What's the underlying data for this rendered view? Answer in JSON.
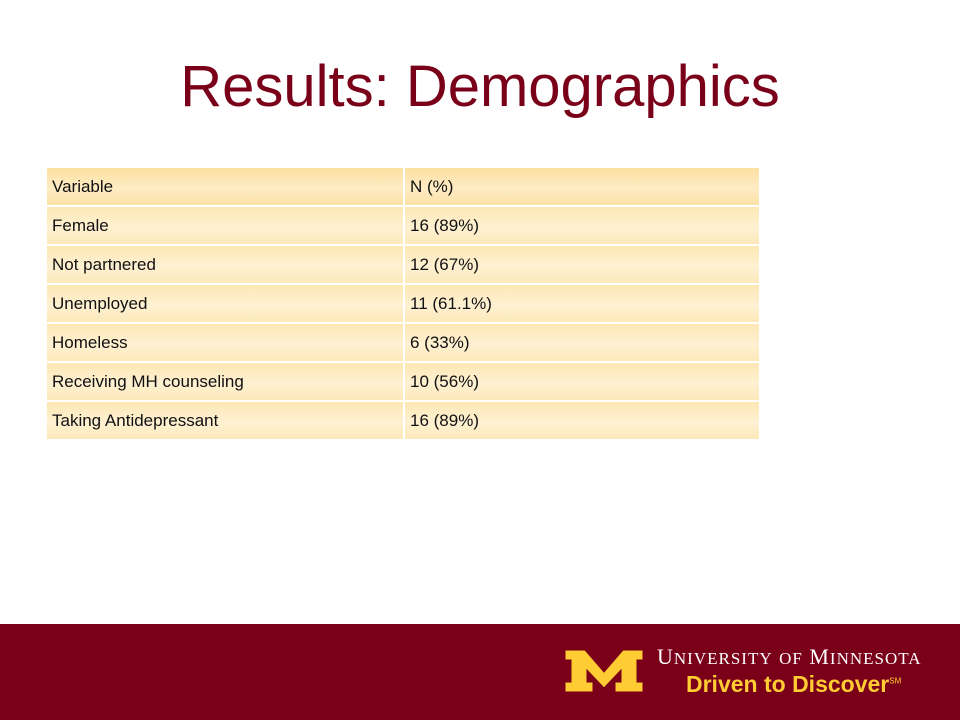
{
  "slide": {
    "title": "Results: Demographics"
  },
  "table": {
    "headers": [
      "Variable",
      "N (%)"
    ],
    "rows": [
      {
        "variable": "Female",
        "value": "16 (89%)"
      },
      {
        "variable": "Not partnered",
        "value": "12 (67%)"
      },
      {
        "variable": "Unemployed",
        "value": "11 (61.1%)"
      },
      {
        "variable": "Homeless",
        "value": "6 (33%)"
      },
      {
        "variable": "Receiving MH counseling",
        "value": "10 (56%)"
      },
      {
        "variable": "Taking Antidepressant",
        "value": "16 (89%)"
      }
    ]
  },
  "footer": {
    "wordmark_u": "U",
    "wordmark_niversity": "NIVERSITY",
    "wordmark_of": "OF",
    "wordmark_m": "M",
    "wordmark_innesota": "INNESOTA",
    "tagline": "Driven to Discover",
    "tagline_mark": "SM",
    "colors": {
      "maroon": "#7a0019",
      "gold": "#ffcc33"
    },
    "logo_icon": "block-m-logo-icon"
  }
}
